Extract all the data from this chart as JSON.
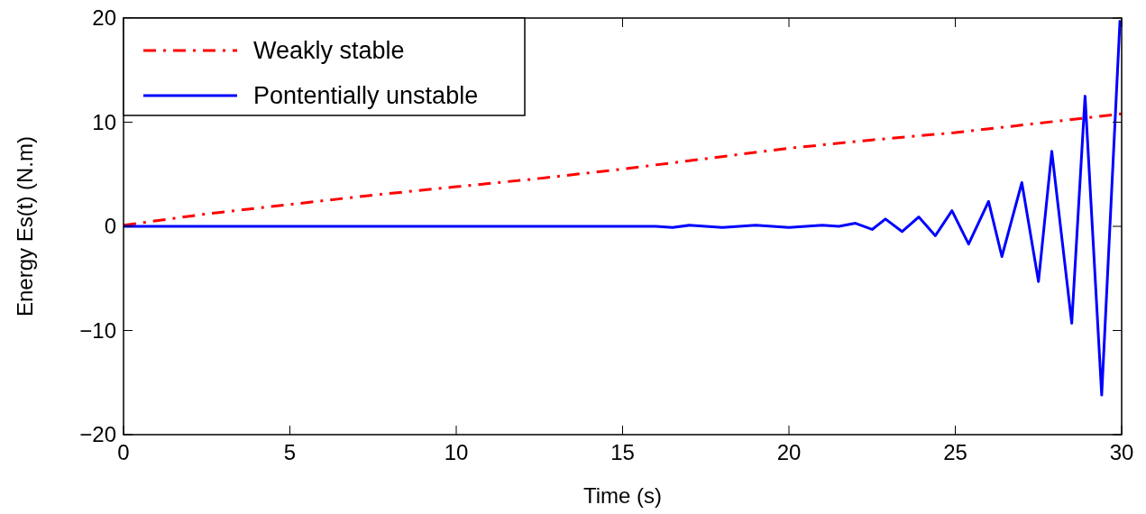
{
  "chart_data": {
    "type": "line",
    "xlabel": "Time (s)",
    "ylabel": "Energy Es(t) (N.m)",
    "xlim": [
      0,
      30
    ],
    "ylim": [
      -20,
      20
    ],
    "xticks": [
      0,
      5,
      10,
      15,
      20,
      25,
      30
    ],
    "yticks": [
      {
        "value": -20,
        "label": "−20"
      },
      {
        "value": -10,
        "label": "−10"
      },
      0,
      10,
      20
    ],
    "grid": false,
    "legend": "top left",
    "series": [
      {
        "name": "Weakly stable",
        "color": "#ff0000",
        "line_style": "dashed",
        "x": [
          0,
          2.5,
          5,
          7.5,
          10,
          12.5,
          15,
          17.5,
          20,
          22.5,
          25,
          27.5,
          30
        ],
        "values": [
          0.1,
          1.2,
          2.1,
          3.0,
          3.8,
          4.6,
          5.5,
          6.5,
          7.5,
          8.3,
          9.0,
          9.9,
          10.8
        ]
      },
      {
        "name": "Pontentially unstable",
        "color": "#0000ff",
        "line_style": "solid",
        "x": [
          0,
          16,
          16.5,
          17,
          18,
          19,
          20,
          21,
          21.5,
          22,
          22.5,
          22.9,
          23.4,
          23.9,
          24.4,
          24.9,
          25.4,
          26.0,
          26.4,
          27.0,
          27.5,
          27.9,
          28.5,
          28.9,
          29.4,
          29.95
        ],
        "values": [
          0,
          0,
          -0.1,
          0.1,
          -0.1,
          0.1,
          -0.1,
          0.1,
          0,
          0.3,
          -0.3,
          0.7,
          -0.5,
          0.9,
          -0.9,
          1.5,
          -1.7,
          2.4,
          -2.9,
          4.2,
          -5.3,
          7.2,
          -9.3,
          12.5,
          -16.2,
          19.8
        ]
      }
    ]
  }
}
